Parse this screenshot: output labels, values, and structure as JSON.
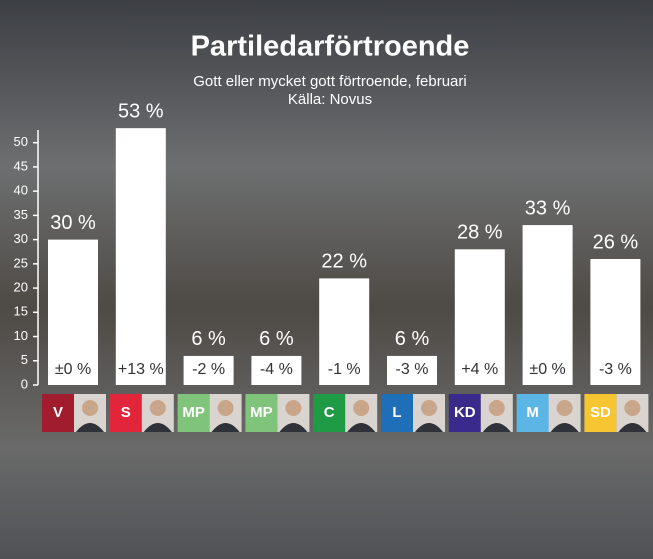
{
  "chart_data": {
    "type": "bar",
    "title": "Partiledarförtroende",
    "subtitle": "Gott eller mycket gott förtroende, februari",
    "source": "Källa: Novus",
    "categories": [
      "V",
      "S",
      "MP",
      "MP",
      "C",
      "L",
      "KD",
      "M",
      "SD"
    ],
    "values": [
      30,
      53,
      6,
      6,
      22,
      6,
      28,
      33,
      26
    ],
    "value_labels": [
      "30 %",
      "53 %",
      "6 %",
      "6 %",
      "22 %",
      "6 %",
      "28 %",
      "33 %",
      "26 %"
    ],
    "change_labels": [
      "±0 %",
      "+13 %",
      "-2 %",
      "-4 %",
      "-1 %",
      "-3 %",
      "+4 %",
      "±0 %",
      "-3 %"
    ],
    "color": "#ffffff",
    "category_colors": [
      "#a11d2e",
      "#e2253a",
      "#7fc47a",
      "#7fc47a",
      "#1f9a45",
      "#1f6fb8",
      "#3a2a8c",
      "#5bb6e6",
      "#f7c531"
    ],
    "ylim": [
      0,
      52
    ],
    "yticks": [
      0,
      5,
      10,
      15,
      20,
      25,
      30,
      35,
      40,
      45,
      50
    ]
  }
}
